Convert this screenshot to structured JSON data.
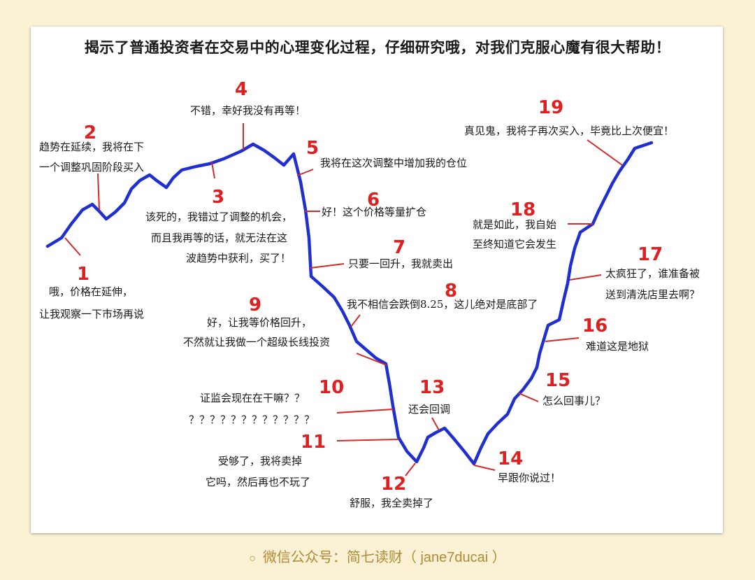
{
  "title": "揭示了普通投资者在交易中的心理变化过程，仔细研究哦，对我们克服心魔有很大帮助！",
  "stages": [
    {
      "num": "1",
      "lines": [
        "哦，价格在延伸，",
        "让我观察一下市场再说"
      ]
    },
    {
      "num": "2",
      "lines": [
        "趋势在延续，我将在下",
        "一个调整巩固阶段买入"
      ]
    },
    {
      "num": "3",
      "lines": [
        "该死的，我错过了调整的机会，",
        "而且我再等的话，就无法在这",
        "波趋势中获利，买了！"
      ]
    },
    {
      "num": "4",
      "lines": [
        "不错，幸好我没有再等！"
      ]
    },
    {
      "num": "5",
      "lines": [
        "我将在这次调整中增加我的仓位"
      ]
    },
    {
      "num": "6",
      "lines": [
        "好！这个价格等量扩仓"
      ]
    },
    {
      "num": "7",
      "lines": [
        "只要一回升，我就卖出"
      ]
    },
    {
      "num": "8",
      "lines": [
        "我不相信会跌倒8.25，这儿绝对是底部了"
      ]
    },
    {
      "num": "9",
      "lines": [
        "好，让我等价格回升，",
        "不然就让我做一个超级长线投资"
      ]
    },
    {
      "num": "10",
      "lines": [
        "证监会现在在干嘛？？",
        "？？？？？？？？？？？？"
      ]
    },
    {
      "num": "11",
      "lines": [
        "受够了，我将卖掉",
        "它吗，然后再也不玩了"
      ]
    },
    {
      "num": "12",
      "lines": [
        "舒服，我全卖掉了"
      ]
    },
    {
      "num": "13",
      "lines": [
        "还会回调"
      ]
    },
    {
      "num": "14",
      "lines": [
        "早跟你说过！"
      ]
    },
    {
      "num": "15",
      "lines": [
        "怎么回事儿？"
      ]
    },
    {
      "num": "16",
      "lines": [
        "难道这是地狱"
      ]
    },
    {
      "num": "17",
      "lines": [
        "太疯狂了，谁准备被",
        "送到清洗店里去啊？"
      ]
    },
    {
      "num": "18",
      "lines": [
        "就是如此，我自始",
        "至终知道它会发生"
      ]
    },
    {
      "num": "19",
      "lines": [
        "真见鬼，我将子再次买入，毕竟比上次便宜！"
      ]
    }
  ],
  "colors": {
    "curve": "#1f2fd0",
    "number": "#e02020",
    "pointer": "#d42a2a",
    "caption": "#b08a36",
    "background": "#fbf2d6"
  },
  "caption": {
    "icon": "circle-icon",
    "text": "微信公众号：简七读财（ jane7ducai ）"
  }
}
